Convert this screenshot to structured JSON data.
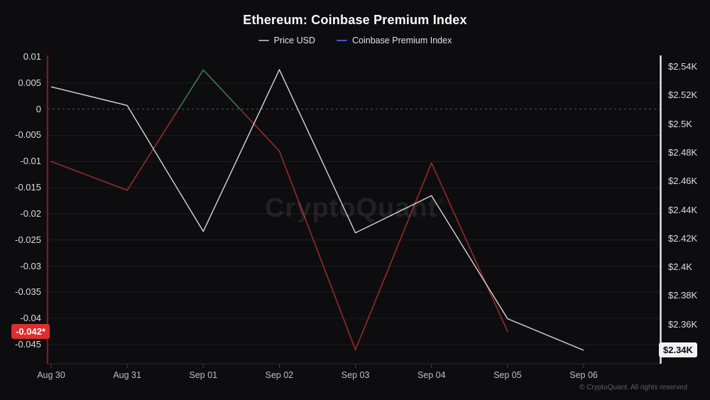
{
  "watermark": "CryptoQuant",
  "watermark_mark": "®",
  "footer": "© CryptoQuant. All rights reserved",
  "legend": {
    "items": [
      {
        "label": "Price USD",
        "color": "#9aa0a6"
      },
      {
        "label": "Coinbase Premium Index",
        "color": "#4656c8"
      }
    ]
  },
  "badges": {
    "premium_current": {
      "label": "-0.042*",
      "bg": "#dd2e2e"
    },
    "price_current": {
      "label": "$2.34K",
      "bg": "#f2f2f2"
    }
  },
  "chart_data": {
    "type": "line",
    "title": "Ethereum: Coinbase Premium Index",
    "legend_position": "top",
    "grid": {
      "horizontal": true,
      "vertical": false,
      "zero_line_dashed": true
    },
    "x": [
      "Aug 30",
      "Aug 31",
      "Sep 01",
      "Sep 02",
      "Sep 03",
      "Sep 04",
      "Sep 05",
      "Sep 06"
    ],
    "series": [
      {
        "name": "Price USD",
        "axis": "right",
        "color": "#d8d8d8",
        "values": [
          2526,
          2513,
          2425,
          2538,
          2424,
          2450,
          2364,
          2342
        ]
      },
      {
        "name": "Coinbase Premium Index",
        "axis": "left",
        "color_negative": "#962b26",
        "color_positive": "#3c7c43",
        "values": [
          -0.01,
          -0.0155,
          0.0075,
          -0.008,
          -0.046,
          -0.0103,
          -0.0425,
          null
        ]
      }
    ],
    "axes": {
      "left": {
        "tick_labels": [
          "0.01",
          "0.005",
          "0",
          "-0.005",
          "-0.01",
          "-0.015",
          "-0.02",
          "-0.025",
          "-0.03",
          "-0.035",
          "-0.04",
          "-0.045"
        ],
        "tick_values": [
          0.01,
          0.005,
          0,
          -0.005,
          -0.01,
          -0.015,
          -0.02,
          -0.025,
          -0.03,
          -0.035,
          -0.04,
          -0.045
        ],
        "range": [
          -0.0475,
          0.01
        ],
        "axis_line_color": "#7e1c1c"
      },
      "right": {
        "tick_labels": [
          "$2.54K",
          "$2.52K",
          "$2.5K",
          "$2.48K",
          "$2.46K",
          "$2.44K",
          "$2.42K",
          "$2.4K",
          "$2.38K",
          "$2.36K",
          "$2.34K"
        ],
        "tick_values": [
          2540,
          2520,
          2500,
          2480,
          2460,
          2440,
          2420,
          2400,
          2380,
          2360,
          2340
        ],
        "range": [
          2332,
          2548
        ],
        "axis_line_color": "#ededed"
      },
      "x": {
        "tick_labels": [
          "Aug 30",
          "Aug 31",
          "Sep 01",
          "Sep 02",
          "Sep 03",
          "Sep 04",
          "Sep 05",
          "Sep 06"
        ]
      }
    }
  }
}
